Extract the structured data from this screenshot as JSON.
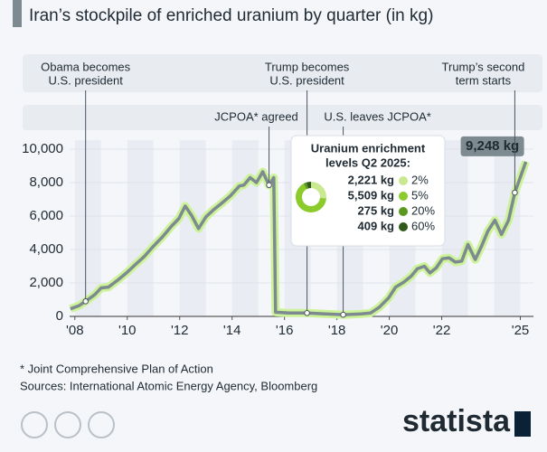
{
  "chart_data": [
    {
      "type": "line",
      "subtitle": "Iran’s stockpile of enriched uranium by quarter (in kg)",
      "x": [
        2007.83,
        2008.17,
        2008.41,
        2008.76,
        2009.0,
        2009.28,
        2009.62,
        2009.97,
        2010.31,
        2010.66,
        2011.0,
        2011.34,
        2011.69,
        2011.97,
        2012.21,
        2012.45,
        2012.72,
        2013.0,
        2013.31,
        2013.59,
        2013.93,
        2014.28,
        2014.45,
        2014.69,
        2014.93,
        2015.17,
        2015.41,
        2015.59,
        2015.66,
        2016.17,
        2016.86,
        2017.55,
        2018.24,
        2018.93,
        2019.28,
        2019.62,
        2019.97,
        2020.24,
        2020.55,
        2020.83,
        2021.07,
        2021.34,
        2021.55,
        2021.79,
        2022.03,
        2022.28,
        2022.52,
        2022.76,
        2023.0,
        2023.28,
        2023.52,
        2023.76,
        2024.03,
        2024.28,
        2024.55,
        2024.79,
        2025.21
      ],
      "series": [
        {
          "color": "#7d8a8f",
          "glow": "#cdf39a",
          "values": [
            450,
            650,
            900,
            1300,
            1700,
            1750,
            2150,
            2600,
            3100,
            3600,
            4200,
            4750,
            5400,
            5850,
            6600,
            6050,
            5250,
            5950,
            6400,
            6750,
            7200,
            7800,
            7850,
            8300,
            8000,
            8650,
            7850,
            8300,
            250,
            200,
            200,
            150,
            100,
            150,
            200,
            550,
            1100,
            1750,
            2050,
            2400,
            2850,
            3000,
            2600,
            2900,
            3450,
            3500,
            3250,
            3300,
            4300,
            3400,
            4200,
            5100,
            5750,
            4900,
            5750,
            7400,
            9248
          ],
          "value_labels": [
            null,
            null,
            null,
            null,
            null,
            null,
            null,
            null,
            null,
            null,
            null,
            null,
            null,
            null,
            null,
            null,
            null,
            null,
            null,
            null,
            null,
            null,
            null,
            null,
            null,
            null,
            null,
            null,
            null,
            null,
            null,
            null,
            null,
            null,
            null,
            null,
            null,
            null,
            null,
            null,
            null,
            null,
            null,
            null,
            null,
            null,
            null,
            null,
            null,
            null,
            null,
            null,
            null,
            null,
            null,
            null,
            "9,248 kg"
          ]
        }
      ],
      "xlim": [
        2007.8,
        2025.5
      ],
      "xticks": [
        {
          "value": 2008,
          "label": "'08"
        },
        {
          "value": 2010,
          "label": "'10"
        },
        {
          "value": 2012,
          "label": "'12"
        },
        {
          "value": 2014,
          "label": "'14"
        },
        {
          "value": 2016,
          "label": "'16"
        },
        {
          "value": 2018,
          "label": "'18"
        },
        {
          "value": 2020,
          "label": "'20"
        },
        {
          "value": 2022,
          "label": "'22"
        },
        {
          "value": 2025,
          "label": "'25"
        }
      ],
      "ylim": [
        0,
        10000
      ],
      "yticks": [
        0,
        {
          "value": 2000,
          "label": "2,000"
        },
        {
          "value": 4000,
          "label": "4,000"
        },
        {
          "value": 6000,
          "label": "6,000"
        },
        {
          "value": 8000,
          "label": "8,000"
        },
        {
          "value": 10000,
          "label": "10,000"
        }
      ],
      "annotations": [
        {
          "label": [
            "Obama becomes",
            "U.S. president"
          ],
          "x": 2008.41
        },
        {
          "label": [
            "Trump becomes",
            "U.S. president"
          ],
          "x": 2016.86
        },
        {
          "label": [
            "Trump’s second",
            "term starts"
          ],
          "x": 2024.79
        },
        {
          "label": [
            "JCPOA* agreed"
          ],
          "x": 2015.41
        },
        {
          "label": [
            "U.S. leaves JCPOA*"
          ],
          "x": 2018.24
        }
      ]
    },
    {
      "type": "pie",
      "title": [
        "Uranium enrichment",
        "levels Q2 2025:"
      ],
      "categories": [
        "2%",
        "5%",
        "20%",
        "60%"
      ],
      "values": [
        2221,
        5509,
        275,
        409
      ],
      "value_labels": [
        "2,221 kg",
        "5,509 kg",
        "275 kg",
        "409 kg"
      ],
      "colors": [
        "#c9e88f",
        "#8ccb2c",
        "#5b981f",
        "#2f5a18"
      ]
    }
  ],
  "footer": {
    "note": "* Joint Comprehensive Plan of Action",
    "source": "Sources: International Atomic Energy Agency, Bloomberg",
    "brand": "statista"
  }
}
